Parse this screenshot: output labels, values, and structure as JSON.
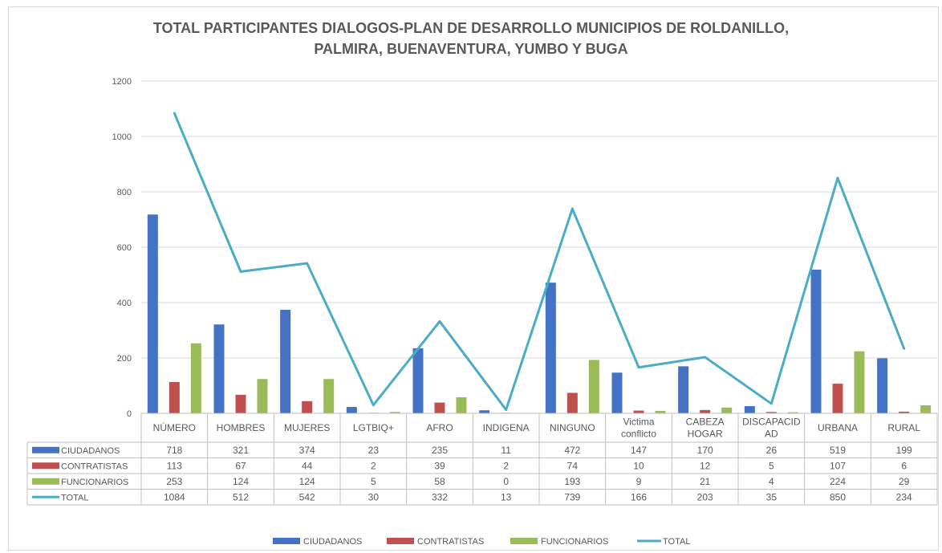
{
  "chart_data": {
    "type": "bar",
    "title_line1": "TOTAL PARTICIPANTES DIALOGOS-PLAN DE DESARROLLO MUNICIPIOS DE ROLDANILLO,",
    "title_line2": "PALMIRA, BUENAVENTURA, YUMBO Y BUGA",
    "xlabel": "",
    "ylabel": "",
    "ylim": [
      0,
      1200
    ],
    "yticks": [
      0,
      200,
      400,
      600,
      800,
      1000,
      1200
    ],
    "grid": true,
    "legend_position": "bottom",
    "data_table": true,
    "categories": [
      [
        "NÚMERO"
      ],
      [
        "HOMBRES"
      ],
      [
        "MUJERES"
      ],
      [
        "LGTBIQ+"
      ],
      [
        "AFRO"
      ],
      [
        "INDIGENA"
      ],
      [
        "NINGUNO"
      ],
      [
        "Victima",
        "conflicto"
      ],
      [
        "CABEZA",
        "HOGAR"
      ],
      [
        "DISCAPACID",
        "AD"
      ],
      [
        "URBANA"
      ],
      [
        "RURAL"
      ]
    ],
    "series": [
      {
        "name": "CIUDADANOS",
        "type": "bar",
        "color": "#4472c4",
        "values": [
          718,
          321,
          374,
          23,
          235,
          11,
          472,
          147,
          170,
          26,
          519,
          199
        ]
      },
      {
        "name": "CONTRATISTAS",
        "type": "bar",
        "color": "#c0504d",
        "values": [
          113,
          67,
          44,
          2,
          39,
          2,
          74,
          10,
          12,
          5,
          107,
          6
        ]
      },
      {
        "name": "FUNCIONARIOS",
        "type": "bar",
        "color": "#9bbb59",
        "values": [
          253,
          124,
          124,
          5,
          58,
          0,
          193,
          9,
          21,
          4,
          224,
          29
        ]
      },
      {
        "name": "TOTAL",
        "type": "line",
        "color": "#4bacc6",
        "values": [
          1084,
          512,
          542,
          30,
          332,
          13,
          739,
          166,
          203,
          35,
          850,
          234
        ]
      }
    ]
  }
}
